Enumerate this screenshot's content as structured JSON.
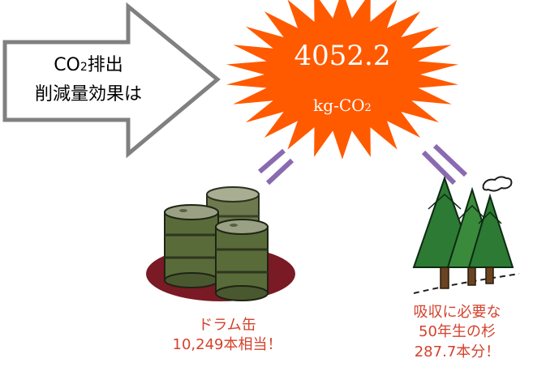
{
  "arrow": {
    "line1_prefix": "CO",
    "line1_sub": "2",
    "line1_suffix": "排出",
    "line2": "削減量効果は"
  },
  "burst": {
    "value": "4052.2",
    "unit_prefix": "kg-CO",
    "unit_sub": "2"
  },
  "drum": {
    "line1": "ドラム缶",
    "line2": "10,249本相当！"
  },
  "trees": {
    "line1": "吸収に必要な",
    "line2": "50年生の杉",
    "line3": "287.7本分！"
  },
  "colors": {
    "burst": "#ff5a00",
    "arrow_fill": "#ffffff",
    "arrow_stroke": "#808080",
    "connector": "#8a6ab0",
    "caption": "#d4422c",
    "drum_body": "#5a6b3a",
    "drum_shadow": "#7a1a24",
    "tree": "#2c7a34"
  }
}
